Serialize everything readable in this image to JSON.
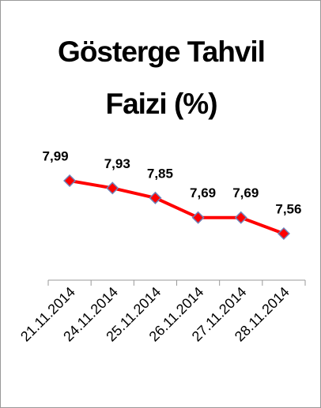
{
  "chart_data": {
    "type": "line",
    "title": "Gösterge Tahvil Faizi (%)",
    "categories": [
      "21.11.2014",
      "24.11.2014",
      "25.11.2014",
      "26.11.2014",
      "27.11.2014",
      "28.11.2014"
    ],
    "values": [
      7.99,
      7.93,
      7.85,
      7.69,
      7.69,
      7.56
    ],
    "value_labels": [
      "7,99",
      "7,93",
      "7,85",
      "7,69",
      "7,69",
      "7,56"
    ],
    "color": "#ff0000"
  }
}
